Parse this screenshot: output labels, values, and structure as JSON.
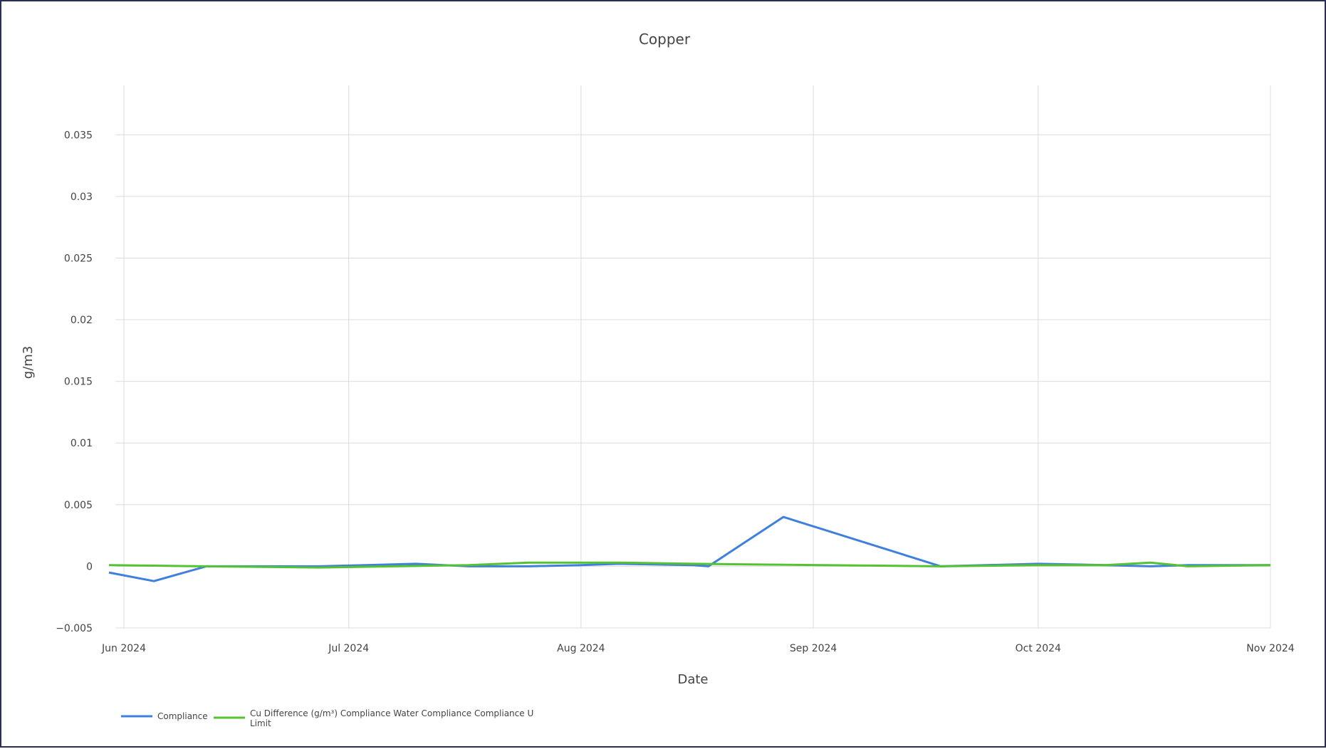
{
  "chart_data": {
    "type": "line",
    "title": "Copper",
    "xlabel": "Date",
    "ylabel": "g/m3",
    "xlim": [
      "2024-06-01",
      "2024-11-01"
    ],
    "ylim": [
      -0.005,
      0.039
    ],
    "grid": true,
    "legend_position": "bottom-left",
    "x_ticks": [
      {
        "date": "2024-06-01",
        "label": "Jun 2024"
      },
      {
        "date": "2024-07-01",
        "label": "Jul 2024"
      },
      {
        "date": "2024-08-01",
        "label": "Aug 2024"
      },
      {
        "date": "2024-09-01",
        "label": "Sep 2024"
      },
      {
        "date": "2024-10-01",
        "label": "Oct 2024"
      },
      {
        "date": "2024-11-01",
        "label": "Nov 2024"
      }
    ],
    "y_ticks": [
      {
        "value": -0.005,
        "label": "−0.005"
      },
      {
        "value": 0,
        "label": "0"
      },
      {
        "value": 0.005,
        "label": "0.005"
      },
      {
        "value": 0.01,
        "label": "0.01"
      },
      {
        "value": 0.015,
        "label": "0.015"
      },
      {
        "value": 0.02,
        "label": "0.02"
      },
      {
        "value": 0.025,
        "label": "0.025"
      },
      {
        "value": 0.03,
        "label": "0.03"
      },
      {
        "value": 0.035,
        "label": "0.035"
      }
    ],
    "series": [
      {
        "name": "Compliance",
        "color": "#3f7fdd",
        "points": [
          {
            "x": "2024-05-30",
            "y": -0.0005
          },
          {
            "x": "2024-06-05",
            "y": -0.0012
          },
          {
            "x": "2024-06-12",
            "y": 0.0
          },
          {
            "x": "2024-06-27",
            "y": 0.0
          },
          {
            "x": "2024-07-10",
            "y": 0.0002
          },
          {
            "x": "2024-07-17",
            "y": 0.0
          },
          {
            "x": "2024-07-25",
            "y": 0.0
          },
          {
            "x": "2024-08-01",
            "y": 0.0001
          },
          {
            "x": "2024-08-06",
            "y": 0.0002
          },
          {
            "x": "2024-08-16",
            "y": 0.0001
          },
          {
            "x": "2024-08-18",
            "y": 0.0
          },
          {
            "x": "2024-08-28",
            "y": 0.004
          },
          {
            "x": "2024-09-18",
            "y": 0.0
          },
          {
            "x": "2024-10-01",
            "y": 0.0002
          },
          {
            "x": "2024-10-10",
            "y": 0.0001
          },
          {
            "x": "2024-10-16",
            "y": 0.0
          },
          {
            "x": "2024-10-21",
            "y": 0.0001
          },
          {
            "x": "2024-11-01",
            "y": 0.0001
          }
        ]
      },
      {
        "name": "Cu Difference (g/m³) Compliance Water Compliance Compliance U Limit",
        "color": "#55c232",
        "points": [
          {
            "x": "2024-05-30",
            "y": 0.0001
          },
          {
            "x": "2024-06-12",
            "y": 0.0
          },
          {
            "x": "2024-06-27",
            "y": -0.0001
          },
          {
            "x": "2024-07-17",
            "y": 0.0001
          },
          {
            "x": "2024-07-25",
            "y": 0.0003
          },
          {
            "x": "2024-08-06",
            "y": 0.0003
          },
          {
            "x": "2024-08-16",
            "y": 0.0002
          },
          {
            "x": "2024-09-18",
            "y": 0.0
          },
          {
            "x": "2024-10-01",
            "y": 0.0001
          },
          {
            "x": "2024-10-10",
            "y": 0.0001
          },
          {
            "x": "2024-10-16",
            "y": 0.0003
          },
          {
            "x": "2024-10-21",
            "y": 0.0
          },
          {
            "x": "2024-11-01",
            "y": 0.0001
          }
        ]
      }
    ]
  }
}
